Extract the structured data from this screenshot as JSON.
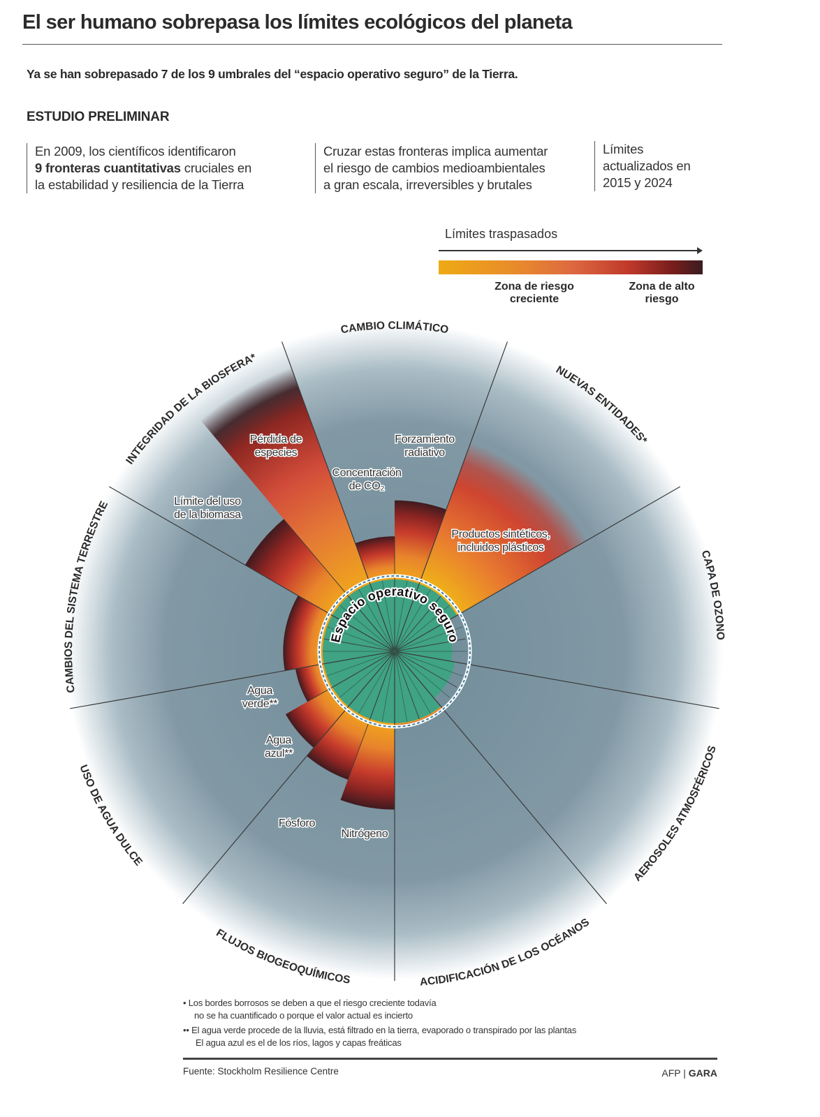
{
  "header": {
    "title": "El ser humano sobrepasa los límites ecológicos del planeta",
    "subtitle": "Ya se han sobrepasado 7 de los 9 umbrales del “espacio operativo seguro” de la Tierra.",
    "section": "ESTUDIO PRELIMINAR"
  },
  "columns": [
    {
      "line1": "En 2009, los científicos identificaron",
      "bold": "9 fronteras cuantitativas",
      "line2_rest": " cruciales en",
      "line3": "la estabilidad y resiliencia de la Tierra"
    },
    {
      "line1": "Cruzar estas fronteras implica aumentar",
      "line2": "el riesgo de cambios medioambientales",
      "line3": "a gran escala, irreversibles y brutales"
    },
    {
      "line1": "Límites",
      "line2": "actualizados en",
      "line3": "2015 y 2024"
    }
  ],
  "legend": {
    "title": "Límites traspasados",
    "low_label": "Zona de riesgo creciente",
    "high_label": "Zona de alto riesgo",
    "colors": [
      "#eeaa14",
      "#e88a2c",
      "#c0392b",
      "#3a1c20"
    ]
  },
  "chart_data": {
    "type": "polar-wedge",
    "center_label": "Espacio operativo seguro",
    "unit": "extent relative to safe boundary (1 = boundary)",
    "categories": [
      {
        "name": "CAMBIO CLIMÁTICO",
        "center_deg": 0
      },
      {
        "name": "NUEVAS ENTIDADES*",
        "center_deg": 40
      },
      {
        "name": "CAPA DE OZONO",
        "center_deg": 80
      },
      {
        "name": "AEROSOLES ATMOSFÉRICOS",
        "center_deg": 120
      },
      {
        "name": "ACIDIFICACIÓN DE LOS OCÉANOS",
        "center_deg": 160
      },
      {
        "name": "FLUJOS BIOGEOQUÍMICOS",
        "center_deg": 200
      },
      {
        "name": "USO DE AGUA DULCE",
        "center_deg": 240
      },
      {
        "name": "CAMBIOS DEL SISTEMA TERRESTRE",
        "center_deg": 280
      },
      {
        "name": "INTEGRIDAD DE LA BIOSFERA*",
        "center_deg": 320
      }
    ],
    "wedges": [
      {
        "id": "co2",
        "label1": "Concentración",
        "label2": "de CO₂",
        "from": -20,
        "to": 0,
        "value": 1.6,
        "fuzzy": false
      },
      {
        "id": "forcing",
        "label1": "Forzamiento",
        "label2": "radiativo",
        "from": 0,
        "to": 20,
        "value": 2.1,
        "fuzzy": false
      },
      {
        "id": "novel",
        "label1": "Productos sintéticos,",
        "label2": "incluidos plásticos",
        "from": 20,
        "to": 60,
        "value": 3.1,
        "fuzzy": true
      },
      {
        "id": "ozone",
        "label1": "",
        "label2": "",
        "from": 60,
        "to": 100,
        "value": 0.8,
        "fuzzy": false
      },
      {
        "id": "aerosols",
        "label1": "",
        "label2": "",
        "from": 100,
        "to": 140,
        "value": 0.85,
        "fuzzy": false
      },
      {
        "id": "ocean",
        "label1": "",
        "label2": "",
        "from": 140,
        "to": 180,
        "value": 1.05,
        "fuzzy": false
      },
      {
        "id": "nitrogen",
        "label1": "Nitrógeno",
        "label2": "",
        "from": 180,
        "to": 200,
        "value": 2.2,
        "fuzzy": false
      },
      {
        "id": "phosphorus",
        "label1": "Fósforo",
        "label2": "",
        "from": 200,
        "to": 220,
        "value": 1.9,
        "fuzzy": false
      },
      {
        "id": "blue-water",
        "label1": "Agua",
        "label2": "azul**",
        "from": 220,
        "to": 240,
        "value": 1.75,
        "fuzzy": false
      },
      {
        "id": "green-water",
        "label1": "Agua",
        "label2": "verde**",
        "from": 240,
        "to": 260,
        "value": 1.4,
        "fuzzy": false
      },
      {
        "id": "land",
        "label1": "",
        "label2": "",
        "from": 260,
        "to": 300,
        "value": 1.55,
        "fuzzy": false
      },
      {
        "id": "biomass",
        "label1": "Límite del uso",
        "label2": "de la biomasa",
        "from": 300,
        "to": 320,
        "value": 2.4,
        "fuzzy": false
      },
      {
        "id": "species",
        "label1": "Pérdida de",
        "label2": "especies",
        "from": 320,
        "to": 340,
        "value": 4.2,
        "fuzzy": true
      }
    ]
  },
  "footnotes": {
    "note1_line1": "•  Los bordes borrosos se deben a que el riesgo creciente todavía",
    "note1_line2": "no se ha cuantificado o porque el valor actual es incierto",
    "note2_line1": "•• El agua verde procede de la lluvia, está filtrado en la tierra, evaporado o transpirado por las plantas",
    "note2_line2": "El agua azul es el de los ríos, lagos y capas freáticas"
  },
  "footer": {
    "source": "Fuente: Stockholm Resilience Centre",
    "credit_a": "AFP | ",
    "credit_b": "GARA"
  }
}
